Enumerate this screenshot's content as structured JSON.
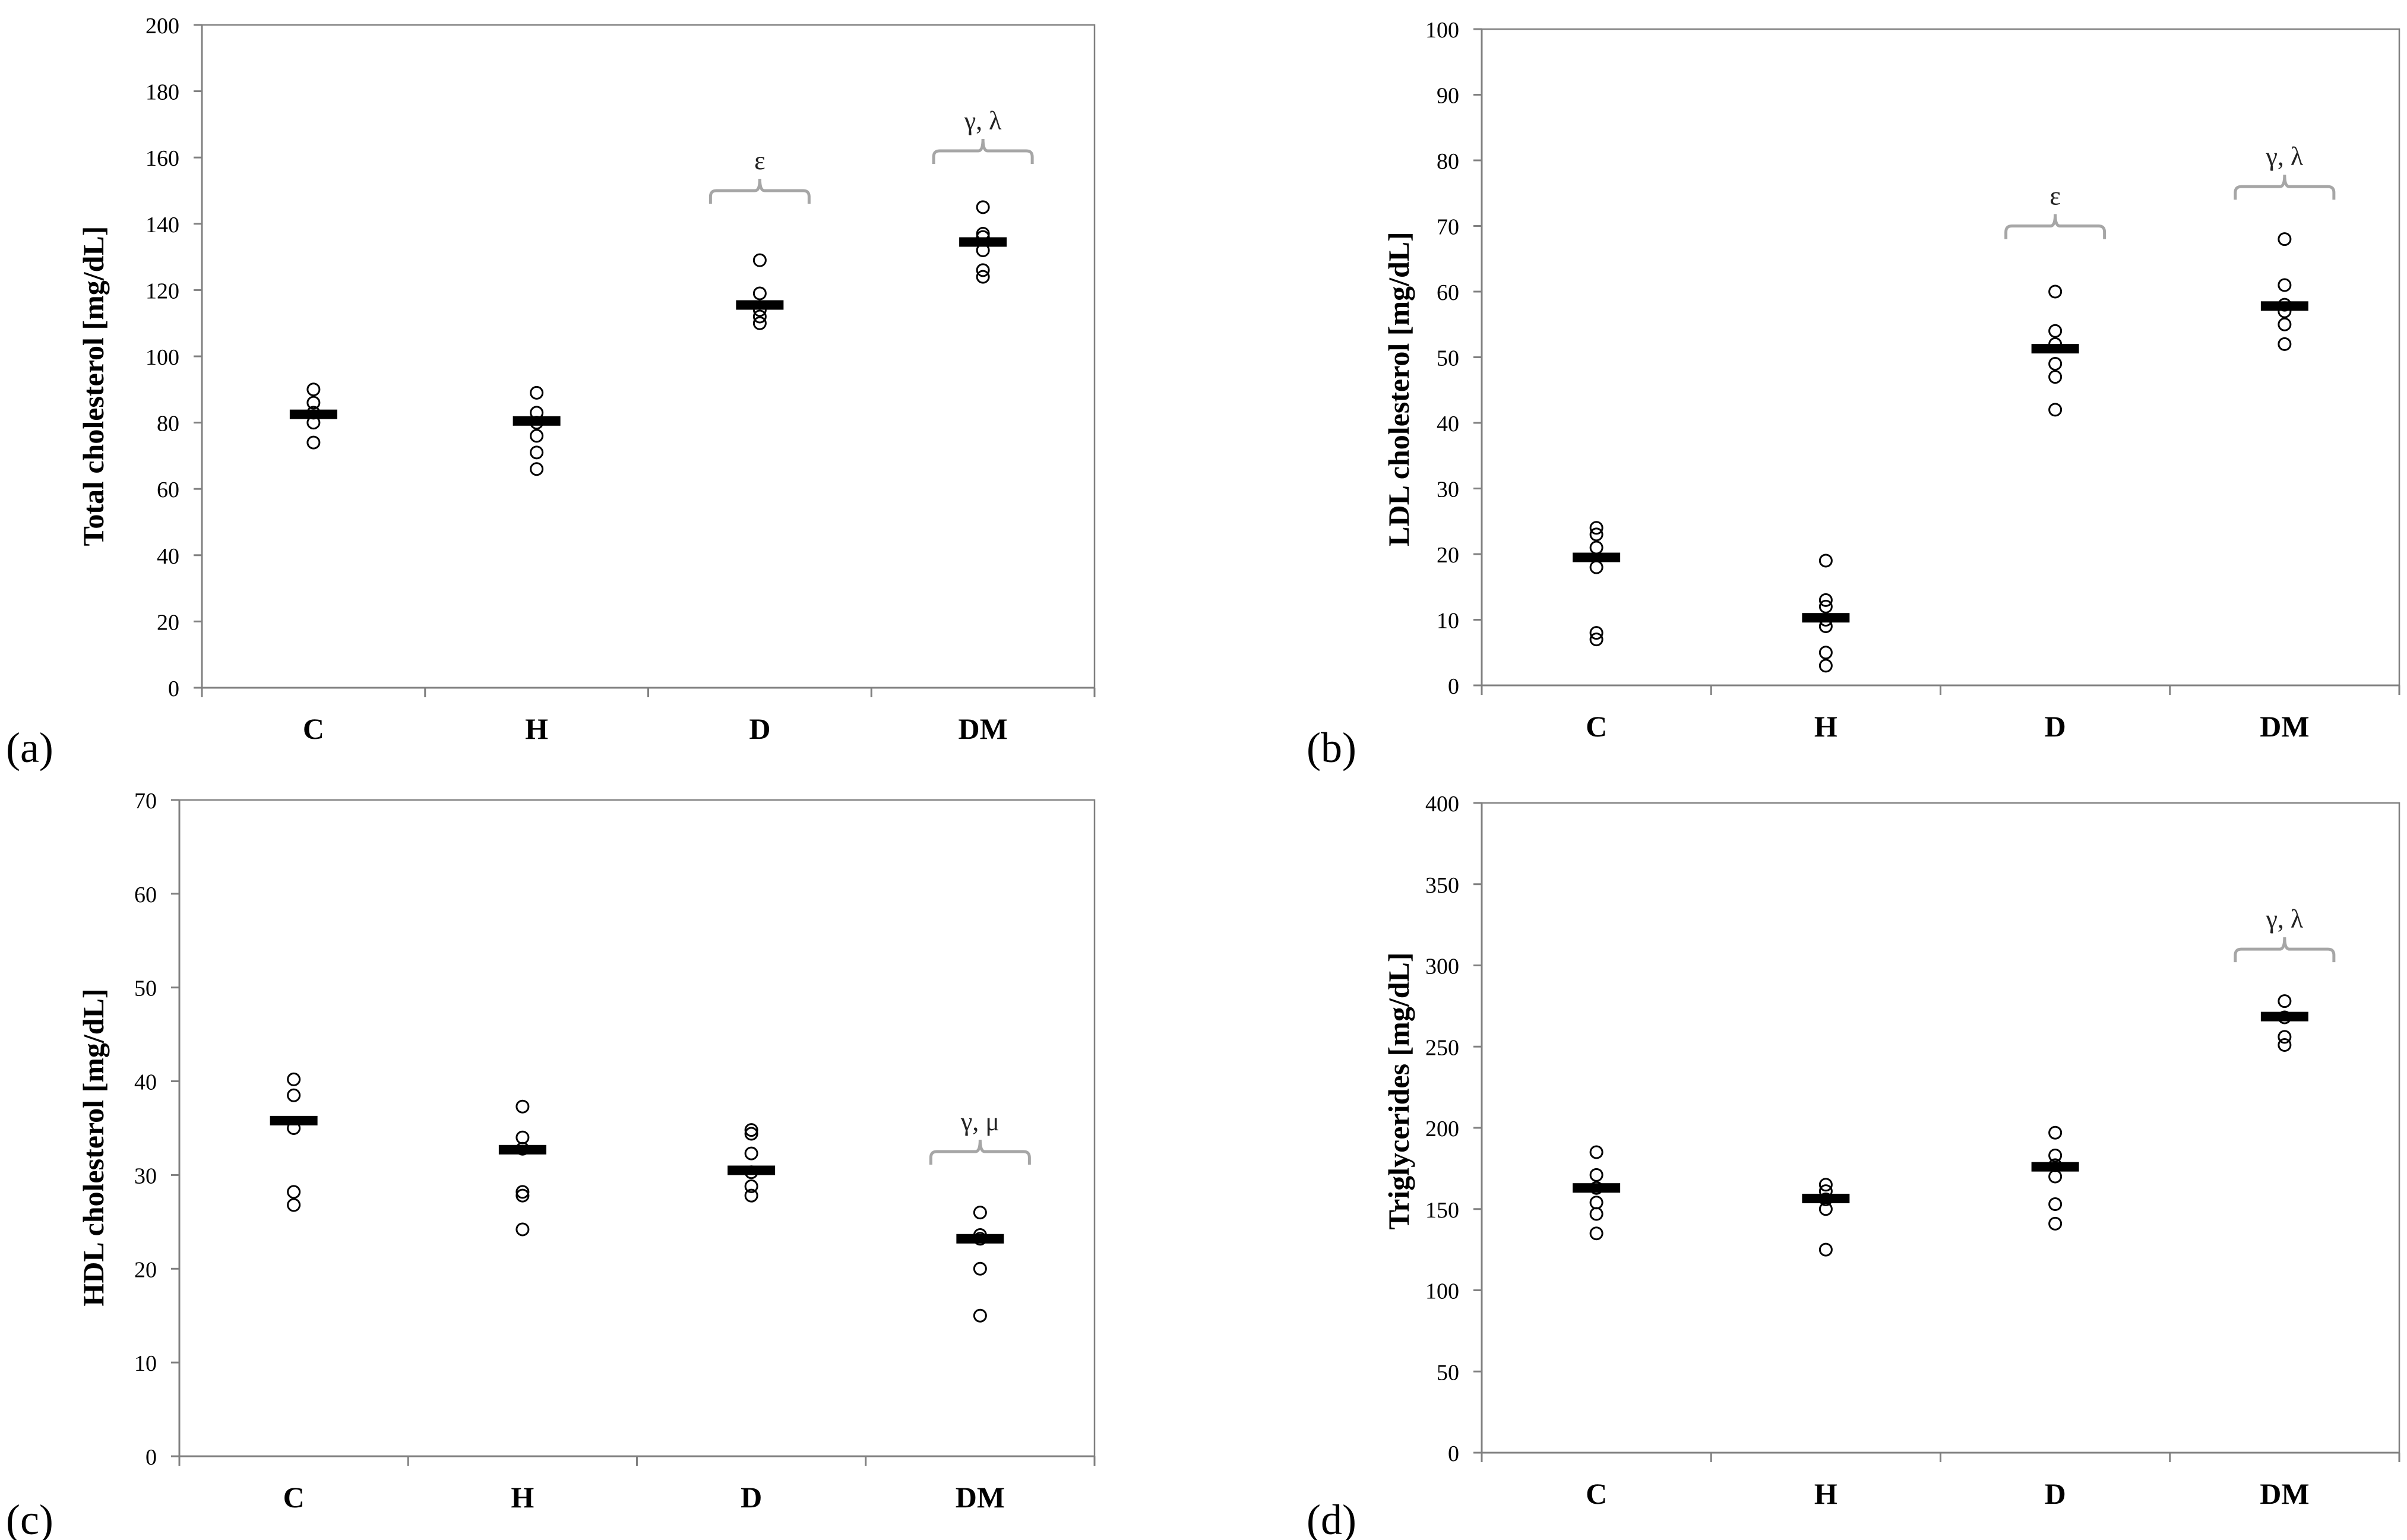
{
  "figure": {
    "colors": {
      "axis": "#808080",
      "marker": "#000000",
      "mean": "#000000",
      "bracket": "#a6a6a6",
      "background": "#ffffff"
    }
  },
  "chart_data": [
    {
      "id": "a",
      "panel_label": "(a)",
      "type": "scatter",
      "ylabel": "Total cholesterol [mg/dL]",
      "xlabel": "",
      "ylim": [
        0,
        200
      ],
      "yticks": [
        0,
        20,
        40,
        60,
        80,
        100,
        120,
        140,
        160,
        180,
        200
      ],
      "grid": false,
      "categories": [
        "C",
        "H",
        "D",
        "DM"
      ],
      "points": [
        [
          74,
          80,
          83,
          86,
          90
        ],
        [
          66,
          71,
          76,
          80,
          83,
          89
        ],
        [
          110,
          112,
          114,
          119,
          129
        ],
        [
          124,
          126,
          132,
          136,
          137,
          145
        ]
      ],
      "means": [
        82.5,
        80.5,
        115.5,
        134.5
      ],
      "annotations": [
        {
          "category": "D",
          "text": "ε",
          "bracket_y": 150
        },
        {
          "category": "DM",
          "text": "γ, λ",
          "bracket_y": 162
        }
      ]
    },
    {
      "id": "b",
      "panel_label": "(b)",
      "type": "scatter",
      "ylabel": "LDL cholesterol [mg/dL]",
      "xlabel": "",
      "ylim": [
        0,
        100
      ],
      "yticks": [
        0,
        10,
        20,
        30,
        40,
        50,
        60,
        70,
        80,
        90,
        100
      ],
      "grid": false,
      "categories": [
        "C",
        "H",
        "D",
        "DM"
      ],
      "points": [
        [
          7,
          8,
          18,
          21,
          23,
          24
        ],
        [
          3,
          5,
          9,
          10,
          12,
          13,
          19
        ],
        [
          42,
          47,
          49,
          52,
          54,
          60
        ],
        [
          52,
          55,
          57,
          58,
          61,
          68
        ]
      ],
      "means": [
        19.5,
        10.3,
        51.3,
        57.8
      ],
      "annotations": [
        {
          "category": "D",
          "text": "ε",
          "bracket_y": 70
        },
        {
          "category": "DM",
          "text": "γ, λ",
          "bracket_y": 76
        }
      ]
    },
    {
      "id": "c",
      "panel_label": "(c)",
      "type": "scatter",
      "ylabel": "HDL cholesterol [mg/dL]",
      "xlabel": "",
      "ylim": [
        0,
        70
      ],
      "yticks": [
        0,
        10,
        20,
        30,
        40,
        50,
        60,
        70
      ],
      "grid": false,
      "categories": [
        "C",
        "H",
        "D",
        "DM"
      ],
      "points": [
        [
          26.8,
          28.2,
          35,
          38.5,
          40.2
        ],
        [
          24.2,
          27.8,
          28.2,
          32.8,
          34,
          37.3
        ],
        [
          27.8,
          28.8,
          30.3,
          32.3,
          34.4,
          34.8
        ],
        [
          15,
          20,
          23.2,
          23.6,
          26
        ]
      ],
      "means": [
        35.8,
        32.7,
        30.5,
        23.2
      ],
      "annotations": [
        {
          "category": "DM",
          "text": "γ, μ",
          "bracket_y": 32.5
        }
      ]
    },
    {
      "id": "d",
      "panel_label": "(d)",
      "type": "scatter",
      "ylabel": "Triglycerides [mg/dL]",
      "xlabel": "",
      "ylim": [
        0,
        400
      ],
      "yticks": [
        0,
        50,
        100,
        150,
        200,
        250,
        300,
        350,
        400
      ],
      "grid": false,
      "categories": [
        "C",
        "H",
        "D",
        "DM"
      ],
      "points": [
        [
          135,
          147,
          154,
          163,
          171,
          185
        ],
        [
          125,
          150,
          156,
          161,
          165
        ],
        [
          141,
          153,
          170,
          177,
          183,
          197
        ],
        [
          251,
          256,
          268,
          278
        ]
      ],
      "means": [
        163,
        156.5,
        176,
        268.5
      ],
      "annotations": [
        {
          "category": "DM",
          "text": "γ, λ",
          "bracket_y": 310
        }
      ]
    }
  ]
}
